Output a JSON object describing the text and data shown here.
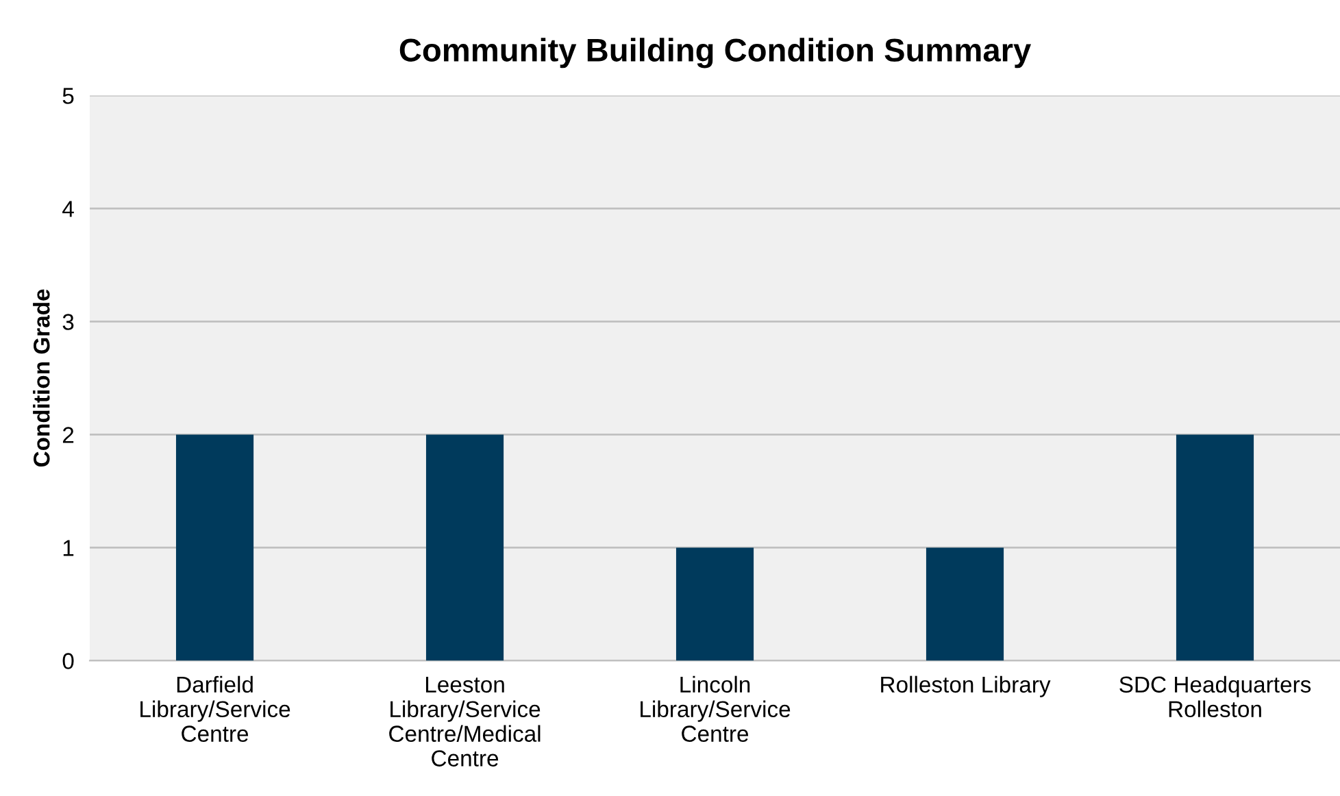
{
  "chart_data": {
    "type": "bar",
    "title": "Community Building Condition Summary",
    "ylabel": "Condition Grade",
    "categories": [
      "Darfield Library/Service Centre",
      "Leeston Library/Service Centre/Medical Centre",
      "Lincoln Library/Service Centre",
      "Rolleston Library",
      "SDC Headquarters Rolleston"
    ],
    "values": [
      2,
      2,
      1,
      1,
      2
    ],
    "color": "#003a5c",
    "ylim": [
      0,
      5
    ],
    "yticks": [
      0,
      1,
      2,
      3,
      4,
      5
    ],
    "grid": "y",
    "legend": false
  }
}
